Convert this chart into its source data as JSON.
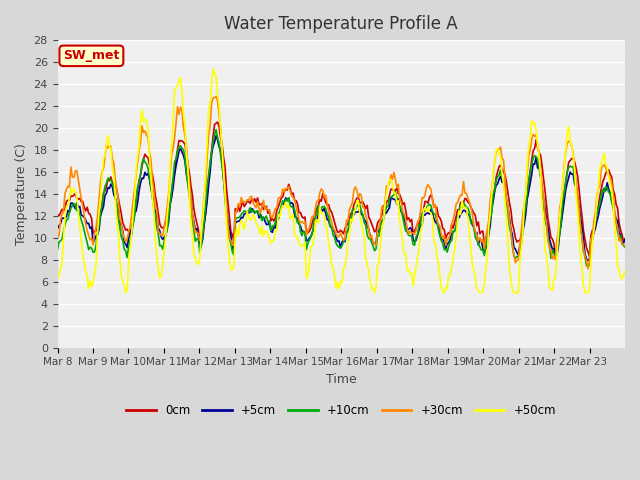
{
  "title": "Water Temperature Profile A",
  "xlabel": "Time",
  "ylabel": "Temperature (C)",
  "ylim": [
    0,
    28
  ],
  "yticks": [
    0,
    2,
    4,
    6,
    8,
    10,
    12,
    14,
    16,
    18,
    20,
    22,
    24,
    26,
    28
  ],
  "x_labels": [
    "Mar 8",
    "Mar 9",
    "Mar 10",
    "Mar 11",
    "Mar 12",
    "Mar 13",
    "Mar 14",
    "Mar 15",
    "Mar 16",
    "Mar 17",
    "Mar 18",
    "Mar 19",
    "Mar 20",
    "Mar 21",
    "Mar 22",
    "Mar 23"
  ],
  "bg_color": "#d8d8d8",
  "plot_bg_color": "#f0f0f0",
  "line_colors": {
    "0cm": "#cc0000",
    "+5cm": "#000099",
    "+10cm": "#00aa00",
    "+30cm": "#ff8800",
    "+50cm": "#ffff00"
  },
  "annotation_text": "SW_met",
  "annotation_bg": "#ffffcc",
  "annotation_border": "#cc0000",
  "annotation_text_color": "#cc0000",
  "n_days": 16
}
